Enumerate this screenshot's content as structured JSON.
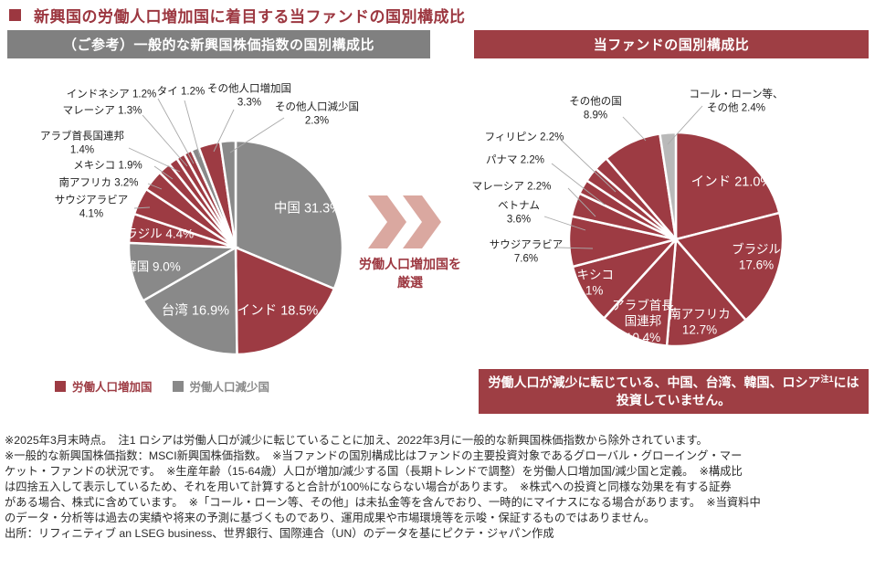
{
  "title": {
    "text": "新興国の労働人口増加国に着目する当ファンドの国別構成比"
  },
  "panels": {
    "left": {
      "header": "（ご参考）一般的な新興国株価指数の国別構成比"
    },
    "right": {
      "header": "当ファンドの国別構成比"
    }
  },
  "legend": {
    "items": [
      {
        "label": "労働人口増加国",
        "color": "#9d3b43"
      },
      {
        "label": "労働人口減少国",
        "color": "#898989"
      }
    ]
  },
  "transition": {
    "label_line1": "労働人口増加国を",
    "label_line2": "厳選",
    "arrow_color": "#daa8a0"
  },
  "highlight_note": {
    "pre": "労働人口が減少に転じている、中国、台湾、韓国、ロシア",
    "sup": "注1",
    "post": "には投資していません。",
    "bg": "#9e3e44"
  },
  "chart_data": [
    {
      "type": "pie",
      "title": "（ご参考）一般的な新興国株価指数の国別構成比",
      "unit": "%",
      "start_angle_deg": 0,
      "direction": "clockwise",
      "legend_position": "bottom",
      "slices": [
        {
          "label": "中国",
          "value": 31.3,
          "group": "労働人口減少国",
          "color": "#898989"
        },
        {
          "label": "インド",
          "value": 18.5,
          "group": "労働人口増加国",
          "color": "#9d3b43"
        },
        {
          "label": "台湾",
          "value": 16.9,
          "group": "労働人口減少国",
          "color": "#898989"
        },
        {
          "label": "韓国",
          "value": 9.0,
          "group": "労働人口減少国",
          "color": "#898989"
        },
        {
          "label": "ブラジル",
          "value": 4.4,
          "group": "労働人口増加国",
          "color": "#9d3b43"
        },
        {
          "label": "サウジアラビア",
          "value": 4.1,
          "group": "労働人口増加国",
          "color": "#9d3b43"
        },
        {
          "label": "南アフリカ",
          "value": 3.2,
          "group": "労働人口増加国",
          "color": "#9d3b43"
        },
        {
          "label": "メキシコ",
          "value": 1.9,
          "group": "労働人口増加国",
          "color": "#9d3b43"
        },
        {
          "label": "アラブ首長国連邦",
          "value": 1.4,
          "group": "労働人口増加国",
          "color": "#9d3b43"
        },
        {
          "label": "マレーシア",
          "value": 1.3,
          "group": "労働人口増加国",
          "color": "#9d3b43"
        },
        {
          "label": "インドネシア",
          "value": 1.2,
          "group": "労働人口増加国",
          "color": "#9d3b43"
        },
        {
          "label": "タイ",
          "value": 1.2,
          "group": "労働人口減少国",
          "color": "#898989"
        },
        {
          "label": "その他人口増加国",
          "value": 3.3,
          "group": "労働人口増加国",
          "color": "#9d3b43"
        },
        {
          "label": "その他人口減少国",
          "value": 2.3,
          "group": "労働人口減少国",
          "color": "#898989"
        }
      ]
    },
    {
      "type": "pie",
      "title": "当ファンドの国別構成比",
      "unit": "%",
      "start_angle_deg": 0,
      "direction": "clockwise",
      "slices": [
        {
          "label": "インド",
          "value": 21.0,
          "color": "#9d3b43"
        },
        {
          "label": "ブラジル",
          "value": 17.6,
          "color": "#9d3b43"
        },
        {
          "label": "南アフリカ",
          "value": 12.7,
          "color": "#9d3b43"
        },
        {
          "label": "アラブ首長国連邦",
          "value": 10.4,
          "color": "#9d3b43"
        },
        {
          "label": "メキシコ",
          "value": 9.1,
          "color": "#9d3b43"
        },
        {
          "label": "サウジアラビア",
          "value": 7.6,
          "color": "#9d3b43"
        },
        {
          "label": "ベトナム",
          "value": 3.6,
          "color": "#9d3b43"
        },
        {
          "label": "マレーシア",
          "value": 2.2,
          "color": "#9d3b43"
        },
        {
          "label": "パナマ",
          "value": 2.2,
          "color": "#9d3b43"
        },
        {
          "label": "フィリピン",
          "value": 2.2,
          "color": "#9d3b43"
        },
        {
          "label": "その他の国",
          "value": 8.9,
          "color": "#9d3b43"
        },
        {
          "label": "コール・ローン等、その他",
          "value": 2.4,
          "color": "#b9b9b9"
        }
      ]
    }
  ],
  "footnotes": [
    "※2025年3月末時点。　注1 ロシアは労働人口が減少に転じていることに加え、2022年3月に一般的な新興国株価指数から除外されています。",
    "※一般的な新興国株価指数：MSCI新興国株価指数。　※当ファンドの国別構成比はファンドの主要投資対象であるグローバル・グローイング・マー",
    "ケット・ファンドの状況です。　※生産年齢（15-64歳）人口が増加/減少する国（長期トレンドで調整）を労働人口増加国/減少国と定義。　※構成比",
    "は四捨五入して表示しているため、それを用いて計算すると合計が100%にならない場合があります。　※株式への投資と同様な効果を有する証券",
    "がある場合、株式に含めています。　※「コール・ローン等、その他」は未払金等を含んでおり、一時的にマイナスになる場合があります。　※当資料中",
    "のデータ・分析等は過去の実績や将来の予測に基づくものであり、運用成果や市場環境等を示唆・保証するものではありません。"
  ],
  "source": "出所：リフィニティブ an LSEG business、世界銀行、国際連合（UN）のデータを基にピクテ・ジャパン作成"
}
